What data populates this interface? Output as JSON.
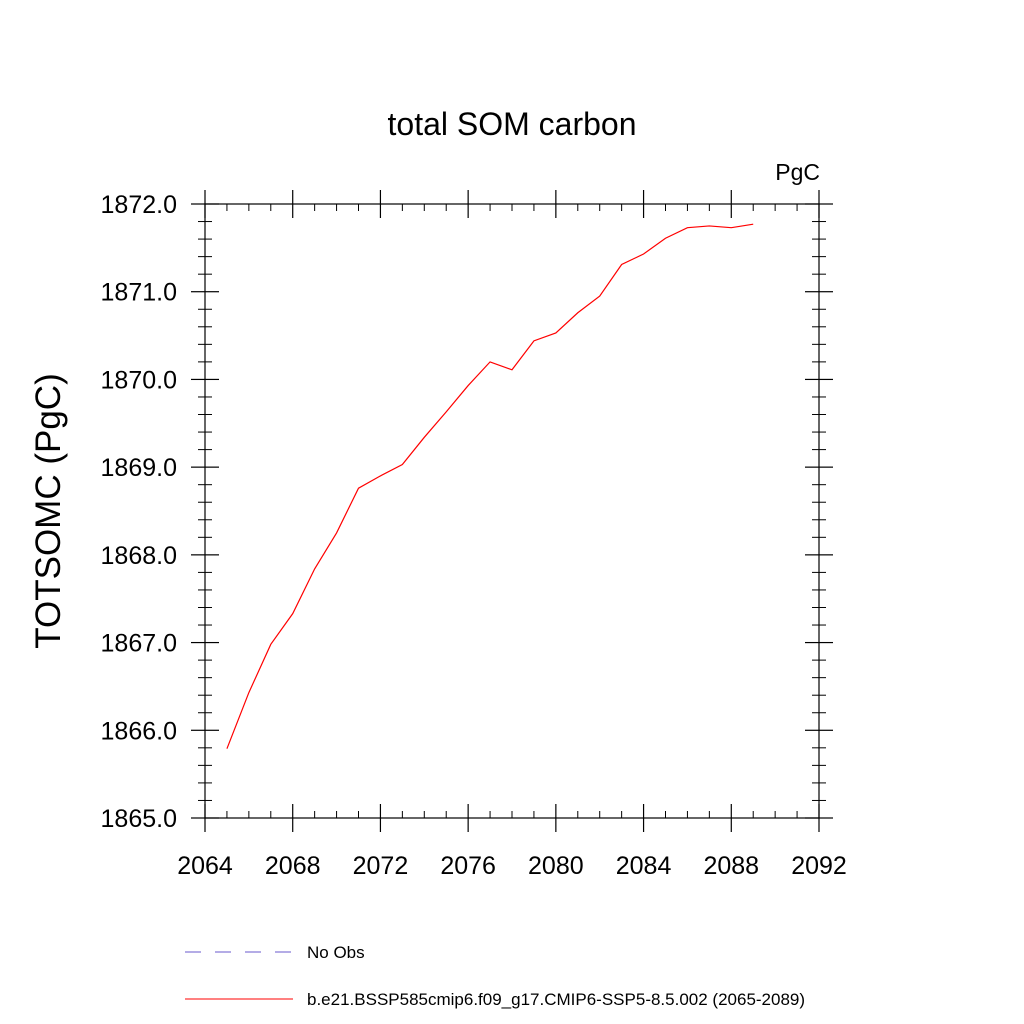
{
  "chart_data": {
    "type": "line",
    "title": "total SOM carbon",
    "units_label": "PgC",
    "xlabel": "",
    "ylabel": "TOTSOMC  (PgC)",
    "xlim": [
      2064,
      2092
    ],
    "ylim": [
      1865.0,
      1872.0
    ],
    "x_ticks": [
      "2064",
      "2068",
      "2072",
      "2076",
      "2080",
      "2084",
      "2088",
      "2092"
    ],
    "y_ticks": [
      "1865.0",
      "1866.0",
      "1867.0",
      "1868.0",
      "1869.0",
      "1870.0",
      "1871.0",
      "1872.0"
    ],
    "grid": false,
    "legend_position": "bottom",
    "series": [
      {
        "name": "No Obs",
        "style": "dashed",
        "color": "#6a5acd",
        "x": [],
        "y": []
      },
      {
        "name": "b.e21.BSSP585cmip6.f09_g17.CMIP6-SSP5-8.5.002 (2065-2089)",
        "style": "solid",
        "color": "#ff0000",
        "x": [
          2065,
          2066,
          2067,
          2068,
          2069,
          2070,
          2071,
          2072,
          2073,
          2074,
          2075,
          2076,
          2077,
          2078,
          2079,
          2080,
          2081,
          2082,
          2083,
          2084,
          2085,
          2086,
          2087,
          2088,
          2089
        ],
        "y": [
          1865.79,
          1866.43,
          1866.98,
          1867.33,
          1867.84,
          1868.25,
          1868.76,
          1868.9,
          1869.03,
          1869.34,
          1869.63,
          1869.93,
          1870.2,
          1870.11,
          1870.44,
          1870.53,
          1870.76,
          1870.95,
          1871.31,
          1871.43,
          1871.61,
          1871.73,
          1871.75,
          1871.73,
          1871.77
        ]
      }
    ]
  }
}
